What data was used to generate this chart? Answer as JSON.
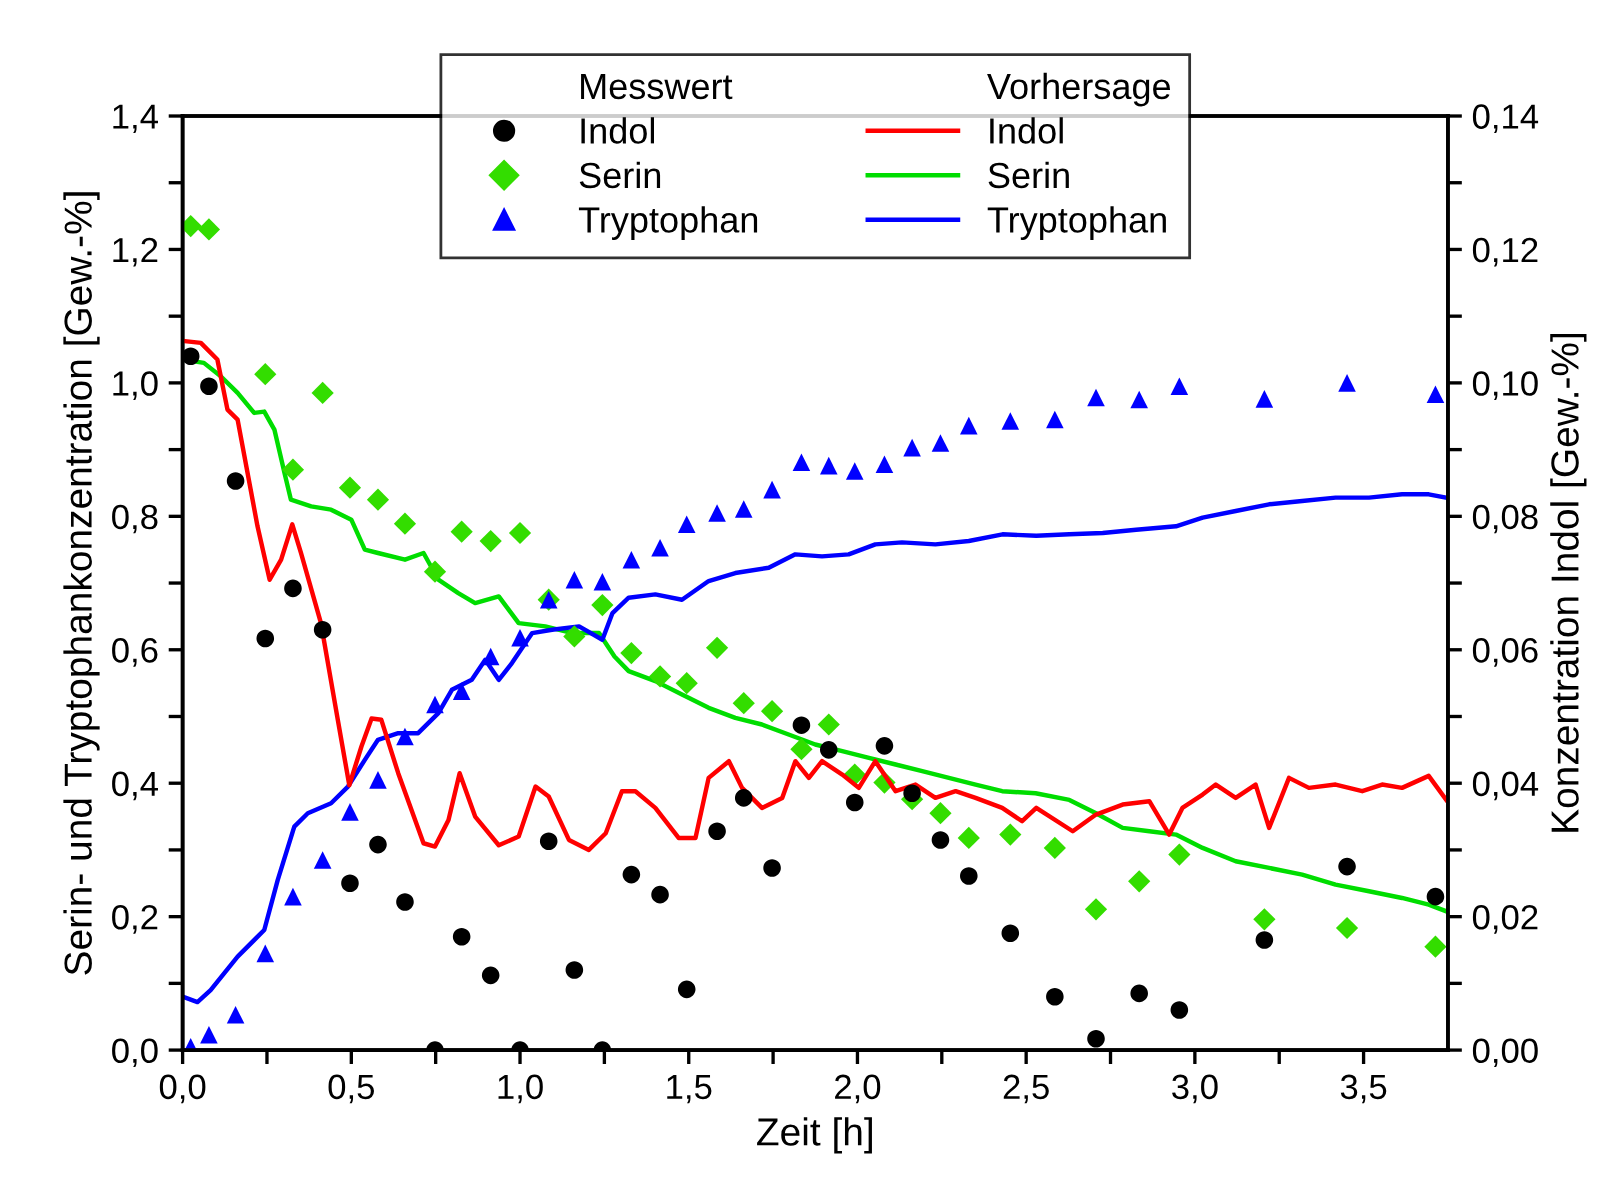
{
  "chart_data": {
    "type": "scatter",
    "xlabel": "Zeit [h]",
    "ylabel": "Serin- und Tryptophankonzentration [Gew.-%]",
    "y2label": "Konzentration Indol [Gew.-%]",
    "annotations": [
      "Messwert",
      "Vorhersage"
    ],
    "x": [
      0.024,
      0.078,
      0.157,
      0.245,
      0.327,
      0.415,
      0.496,
      0.579,
      0.659,
      0.748,
      0.827,
      0.913,
      1.0,
      1.085,
      1.161,
      1.244,
      1.33,
      1.415,
      1.494,
      1.584,
      1.663,
      1.747,
      1.834,
      1.915,
      1.992,
      2.08,
      2.162,
      2.246,
      2.33,
      2.453,
      2.585,
      2.707,
      2.835,
      2.954,
      3.206,
      3.451,
      3.713
    ],
    "series": [
      {
        "name": "Indol",
        "marker": "circle",
        "axis": "y2",
        "color": "#000000",
        "values": [
          0.104,
          0.0995,
          0.0853,
          0.0617,
          0.0692,
          0.063,
          0.025,
          0.0308,
          0.0222,
          0,
          0.017,
          0.0112,
          0,
          0.0313,
          0.012,
          0,
          0.0263,
          0.0233,
          0.0091,
          0.0328,
          0.0378,
          0.0273,
          0.0487,
          0.045,
          0.0371,
          0.0456,
          0.0385,
          0.0315,
          0.0261,
          0.0175,
          0.008,
          0.0017,
          0.0085,
          0.006,
          0.0165,
          0.0275,
          0.023
        ]
      },
      {
        "name": "Serin",
        "marker": "diamond",
        "color": "#33dd00",
        "values": [
          1.235,
          1.23,
          null,
          1.013,
          0.87,
          0.985,
          0.843,
          0.825,
          0.789,
          0.717,
          0.777,
          0.763,
          0.775,
          0.675,
          0.62,
          0.667,
          0.595,
          0.56,
          0.55,
          0.603,
          0.52,
          0.508,
          0.451,
          0.488,
          0.413,
          0.401,
          0.376,
          0.355,
          0.318,
          0.323,
          0.303,
          0.211,
          0.253,
          0.293,
          0.196,
          0.183,
          0.155
        ]
      },
      {
        "name": "Tryptophan",
        "marker": "triangle",
        "color": "#0000ff",
        "values": [
          0.005,
          0.023,
          0.053,
          0.145,
          0.23,
          0.285,
          0.357,
          0.405,
          0.47,
          0.518,
          0.538,
          0.59,
          0.618,
          0.675,
          0.705,
          0.702,
          0.735,
          0.753,
          0.788,
          0.805,
          0.811,
          0.84,
          0.881,
          0.876,
          0.868,
          0.878,
          0.903,
          0.91,
          0.936,
          0.943,
          0.945,
          0.978,
          0.975,
          0.995,
          0.976,
          1.0,
          0.983
        ]
      },
      {
        "name": "Indol",
        "type": "line",
        "axis": "y2",
        "color": "#ff0000",
        "x": [
          0,
          0.054,
          0.103,
          0.133,
          0.163,
          0.222,
          0.258,
          0.292,
          0.325,
          0.351,
          0.41,
          0.46,
          0.494,
          0.53,
          0.56,
          0.589,
          0.639,
          0.714,
          0.748,
          0.788,
          0.821,
          0.867,
          0.937,
          0.996,
          1.046,
          1.085,
          1.145,
          1.204,
          1.254,
          1.302,
          1.342,
          1.401,
          1.47,
          1.52,
          1.559,
          1.619,
          1.658,
          1.717,
          1.777,
          1.816,
          1.856,
          1.895,
          1.955,
          2.004,
          2.053,
          2.113,
          2.172,
          2.231,
          2.291,
          2.35,
          2.429,
          2.488,
          2.53,
          2.638,
          2.707,
          2.786,
          2.865,
          2.924,
          2.963,
          3.023,
          3.062,
          3.121,
          3.18,
          3.22,
          3.279,
          3.338,
          3.417,
          3.496,
          3.555,
          3.614,
          3.693,
          3.745
        ],
        "values": [
          0.1063,
          0.106,
          0.1035,
          0.096,
          0.0945,
          0.0785,
          0.0705,
          0.0735,
          0.0788,
          0.0745,
          0.064,
          0.0495,
          0.0397,
          0.0455,
          0.0497,
          0.0495,
          0.0415,
          0.031,
          0.0305,
          0.0345,
          0.0415,
          0.035,
          0.0307,
          0.032,
          0.0395,
          0.038,
          0.0315,
          0.03,
          0.0325,
          0.0388,
          0.0388,
          0.0363,
          0.0318,
          0.0318,
          0.0408,
          0.0433,
          0.0393,
          0.0363,
          0.0378,
          0.0433,
          0.0408,
          0.0433,
          0.0413,
          0.0393,
          0.0433,
          0.0388,
          0.0398,
          0.0378,
          0.0388,
          0.0378,
          0.0363,
          0.0343,
          0.0363,
          0.0328,
          0.0353,
          0.0368,
          0.0373,
          0.0323,
          0.0363,
          0.0383,
          0.0398,
          0.0378,
          0.0398,
          0.0333,
          0.0408,
          0.0393,
          0.0398,
          0.0388,
          0.0398,
          0.0393,
          0.0411,
          0.0375
        ]
      },
      {
        "name": "Serin",
        "type": "line",
        "color": "#00dd00",
        "x": [
          0,
          0.063,
          0.113,
          0.163,
          0.212,
          0.242,
          0.272,
          0.302,
          0.321,
          0.381,
          0.44,
          0.5,
          0.54,
          0.579,
          0.659,
          0.714,
          0.758,
          0.817,
          0.867,
          0.937,
          0.996,
          1.075,
          1.155,
          1.234,
          1.28,
          1.322,
          1.401,
          1.48,
          1.559,
          1.638,
          1.717,
          1.796,
          1.875,
          1.955,
          2.034,
          2.113,
          2.192,
          2.271,
          2.35,
          2.429,
          2.528,
          2.628,
          2.707,
          2.786,
          2.865,
          2.944,
          3.023,
          3.121,
          3.22,
          3.318,
          3.417,
          3.516,
          3.614,
          3.693,
          3.745
        ],
        "values": [
          1.035,
          1.03,
          1.01,
          0.985,
          0.955,
          0.957,
          0.93,
          0.865,
          0.825,
          0.815,
          0.81,
          0.795,
          0.75,
          0.745,
          0.735,
          0.745,
          0.705,
          0.685,
          0.67,
          0.68,
          0.64,
          0.635,
          0.625,
          0.625,
          0.59,
          0.568,
          0.553,
          0.533,
          0.513,
          0.498,
          0.488,
          0.473,
          0.458,
          0.448,
          0.438,
          0.428,
          0.418,
          0.408,
          0.398,
          0.388,
          0.385,
          0.375,
          0.355,
          0.333,
          0.328,
          0.323,
          0.303,
          0.283,
          0.273,
          0.263,
          0.248,
          0.238,
          0.228,
          0.218,
          0.208
        ]
      },
      {
        "name": "Tryptophan",
        "type": "line",
        "color": "#0000ff",
        "x": [
          0,
          0.044,
          0.083,
          0.163,
          0.242,
          0.282,
          0.331,
          0.371,
          0.44,
          0.49,
          0.54,
          0.579,
          0.639,
          0.698,
          0.758,
          0.798,
          0.857,
          0.897,
          0.937,
          0.976,
          1.036,
          1.095,
          1.175,
          1.244,
          1.274,
          1.322,
          1.401,
          1.48,
          1.559,
          1.638,
          1.737,
          1.816,
          1.895,
          1.974,
          2.053,
          2.132,
          2.231,
          2.33,
          2.43,
          2.53,
          2.628,
          2.727,
          2.826,
          2.944,
          3.023,
          3.121,
          3.22,
          3.318,
          3.417,
          3.516,
          3.614,
          3.693,
          3.745
        ],
        "values": [
          0.08,
          0.072,
          0.09,
          0.14,
          0.18,
          0.255,
          0.335,
          0.355,
          0.37,
          0.395,
          0.435,
          0.465,
          0.475,
          0.475,
          0.505,
          0.54,
          0.555,
          0.585,
          0.555,
          0.58,
          0.625,
          0.63,
          0.635,
          0.615,
          0.655,
          0.678,
          0.683,
          0.675,
          0.703,
          0.715,
          0.723,
          0.743,
          0.74,
          0.743,
          0.758,
          0.761,
          0.758,
          0.763,
          0.773,
          0.771,
          0.773,
          0.775,
          0.78,
          0.785,
          0.798,
          0.808,
          0.818,
          0.823,
          0.828,
          0.828,
          0.833,
          0.833,
          0.828
        ]
      }
    ],
    "xlim": [
      0,
      3.75
    ],
    "xticks": [
      {
        "value": 0,
        "label": "0,0"
      },
      {
        "value": 0.25,
        "label": null
      },
      {
        "value": 0.5,
        "label": "0,5"
      },
      {
        "value": 0.75,
        "label": null
      },
      {
        "value": 1,
        "label": "1,0"
      },
      {
        "value": 1.25,
        "label": null
      },
      {
        "value": 1.5,
        "label": "1,5"
      },
      {
        "value": 1.75,
        "label": null
      },
      {
        "value": 2,
        "label": "2,0"
      },
      {
        "value": 2.25,
        "label": null
      },
      {
        "value": 2.5,
        "label": "2,5"
      },
      {
        "value": 2.75,
        "label": null
      },
      {
        "value": 3,
        "label": "3,0"
      },
      {
        "value": 3.25,
        "label": null
      },
      {
        "value": 3.5,
        "label": "3,5"
      }
    ],
    "ylim": [
      0,
      1.4
    ],
    "yticks": [
      {
        "value": 0,
        "label": "0,0"
      },
      {
        "value": 0.1,
        "label": null
      },
      {
        "value": 0.2,
        "label": "0,2"
      },
      {
        "value": 0.3,
        "label": null
      },
      {
        "value": 0.4,
        "label": "0,4"
      },
      {
        "value": 0.5,
        "label": null
      },
      {
        "value": 0.6,
        "label": "0,6"
      },
      {
        "value": 0.7,
        "label": null
      },
      {
        "value": 0.8,
        "label": "0,8"
      },
      {
        "value": 0.9,
        "label": null
      },
      {
        "value": 1.0,
        "label": "1,0"
      },
      {
        "value": 1.1,
        "label": null
      },
      {
        "value": 1.2,
        "label": "1,2"
      },
      {
        "value": 1.3,
        "label": null
      },
      {
        "value": 1.4,
        "label": "1,4"
      }
    ],
    "y2lim": [
      0,
      0.14
    ],
    "y2ticks": [
      {
        "value": 0,
        "label": "0,00"
      },
      {
        "value": 0.01,
        "label": null
      },
      {
        "value": 0.02,
        "label": "0,02"
      },
      {
        "value": 0.03,
        "label": null
      },
      {
        "value": 0.04,
        "label": "0,04"
      },
      {
        "value": 0.05,
        "label": null
      },
      {
        "value": 0.06,
        "label": "0,06"
      },
      {
        "value": 0.07,
        "label": null
      },
      {
        "value": 0.08,
        "label": "0,08"
      },
      {
        "value": 0.09,
        "label": null
      },
      {
        "value": 0.1,
        "label": "0,10"
      },
      {
        "value": 0.11,
        "label": null
      },
      {
        "value": 0.12,
        "label": "0,12"
      },
      {
        "value": 0.13,
        "label": null
      },
      {
        "value": 0.14,
        "label": "0,14"
      }
    ],
    "legend": "top",
    "grid": false
  }
}
